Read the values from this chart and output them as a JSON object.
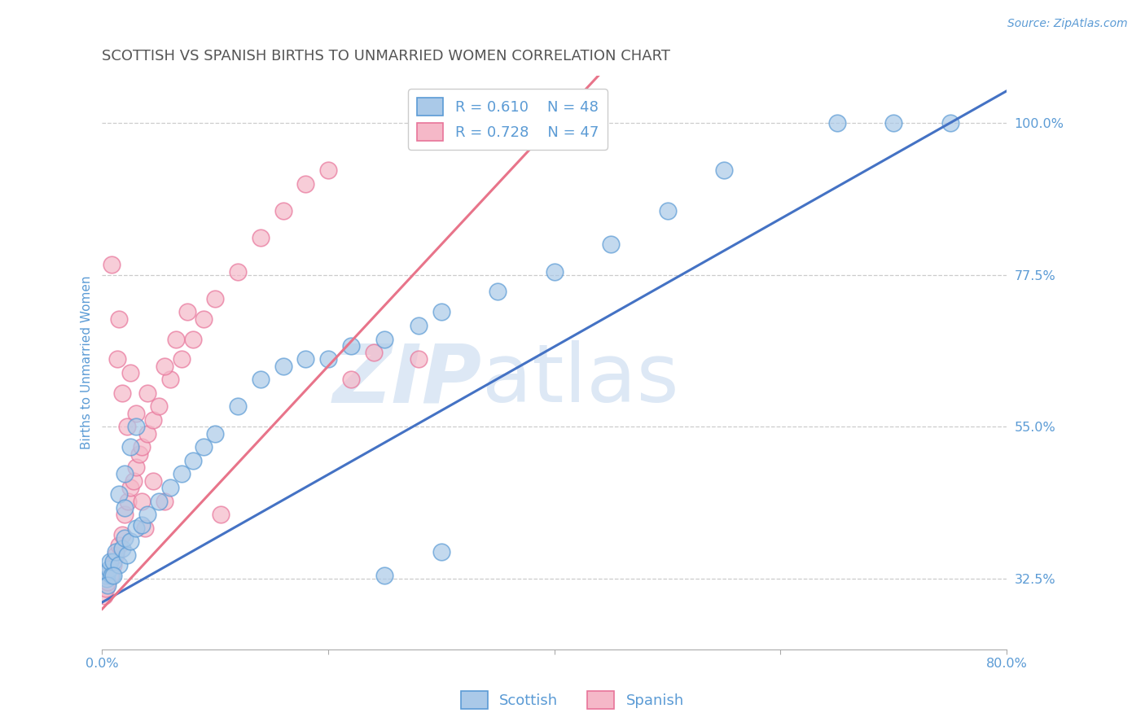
{
  "title": "SCOTTISH VS SPANISH BIRTHS TO UNMARRIED WOMEN CORRELATION CHART",
  "source_text": "Source: ZipAtlas.com",
  "ylabel": "Births to Unmarried Women",
  "xlim": [
    0.0,
    80.0
  ],
  "ylim": [
    22.0,
    107.0
  ],
  "scottish_R": 0.61,
  "scottish_N": 48,
  "spanish_R": 0.728,
  "spanish_N": 47,
  "scottish_color": "#aac9e8",
  "spanish_color": "#f5b8c8",
  "scottish_edge_color": "#5b9bd5",
  "spanish_edge_color": "#e8749a",
  "scottish_line_color": "#4472c4",
  "spanish_line_color": "#e8748a",
  "watermark_color": "#dde8f5",
  "background_color": "#ffffff",
  "grid_color": "#cccccc",
  "title_color": "#555555",
  "axis_label_color": "#5b9bd5",
  "scot_line_x0": 0.0,
  "scot_line_y0": 29.0,
  "scot_line_x1": 75.0,
  "scot_line_y1": 100.0,
  "span_line_x0": 0.0,
  "span_line_y0": 28.0,
  "span_line_x1": 40.0,
  "span_line_y1": 100.0,
  "scottish_x": [
    0.3,
    0.4,
    0.5,
    0.6,
    0.7,
    0.8,
    1.0,
    1.2,
    1.5,
    1.8,
    2.0,
    2.2,
    2.5,
    3.0,
    3.5,
    4.0,
    5.0,
    6.0,
    7.0,
    8.0,
    9.0,
    10.0,
    12.0,
    14.0,
    16.0,
    18.0,
    20.0,
    22.0,
    25.0,
    28.0,
    30.0,
    35.0,
    40.0,
    45.0,
    50.0,
    55.0,
    65.0,
    70.0,
    75.0,
    1.5,
    2.0,
    2.5,
    3.0,
    0.5,
    1.0,
    2.0,
    25.0,
    30.0
  ],
  "scottish_y": [
    33.0,
    32.5,
    33.5,
    34.0,
    35.0,
    33.0,
    35.0,
    36.5,
    34.5,
    37.0,
    38.5,
    36.0,
    38.0,
    40.0,
    40.5,
    42.0,
    44.0,
    46.0,
    48.0,
    50.0,
    52.0,
    54.0,
    58.0,
    62.0,
    64.0,
    65.0,
    65.0,
    67.0,
    68.0,
    70.0,
    72.0,
    75.0,
    78.0,
    82.0,
    87.0,
    93.0,
    100.0,
    100.0,
    100.0,
    45.0,
    48.0,
    52.0,
    55.0,
    31.5,
    33.0,
    43.0,
    33.0,
    36.5
  ],
  "spanish_x": [
    0.2,
    0.3,
    0.5,
    0.7,
    1.0,
    1.2,
    1.5,
    1.8,
    2.0,
    2.3,
    2.5,
    2.8,
    3.0,
    3.3,
    3.5,
    4.0,
    4.5,
    5.0,
    6.0,
    7.0,
    8.0,
    9.0,
    10.0,
    12.0,
    14.0,
    16.0,
    18.0,
    20.0,
    22.0,
    24.0,
    3.0,
    4.0,
    5.5,
    6.5,
    7.5,
    10.5,
    3.5,
    4.5,
    1.5,
    2.5,
    0.8,
    1.3,
    1.8,
    2.2,
    3.8,
    5.5,
    28.0
  ],
  "spanish_y": [
    30.0,
    31.0,
    32.0,
    33.0,
    34.5,
    36.0,
    37.5,
    39.0,
    42.0,
    44.0,
    46.0,
    47.0,
    49.0,
    51.0,
    52.0,
    54.0,
    56.0,
    58.0,
    62.0,
    65.0,
    68.0,
    71.0,
    74.0,
    78.0,
    83.0,
    87.0,
    91.0,
    93.0,
    62.0,
    66.0,
    57.0,
    60.0,
    64.0,
    68.0,
    72.0,
    42.0,
    44.0,
    47.0,
    71.0,
    63.0,
    79.0,
    65.0,
    60.0,
    55.0,
    40.0,
    44.0,
    65.0
  ]
}
